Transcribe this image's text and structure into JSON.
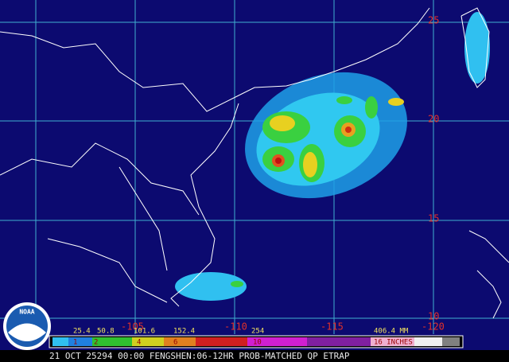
{
  "map": {
    "latitude_labels": [
      "25",
      "20",
      "15",
      "10"
    ],
    "longitude_labels": [
      "-105",
      "-110",
      "-115",
      "-120"
    ],
    "legend": {
      "mm_labels": [
        "25.4",
        "50.8",
        "101.6",
        "152.4",
        "254",
        "406.4 MM"
      ],
      "inch_labels": [
        "1",
        "2",
        "4",
        "6",
        "10",
        "16 INCHES"
      ]
    },
    "caption": "21 OCT 25294 00:00 FENGSHEN:06-12HR PROB-MATCHED QP ETRAP",
    "logo": "NOAA"
  }
}
